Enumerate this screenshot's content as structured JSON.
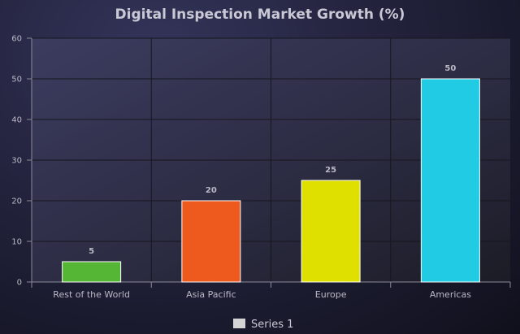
{
  "chart_data": {
    "type": "bar",
    "title": "Digital Inspection Market Growth (%)",
    "categories": [
      "Rest of the World",
      "Asia Pacific",
      "Europe",
      "Americas"
    ],
    "series": [
      {
        "name": "Series 1",
        "values": [
          5,
          20,
          25,
          50
        ],
        "colors": [
          "#55b535",
          "#ee5a1e",
          "#e0e000",
          "#22cbe4"
        ]
      }
    ],
    "ylim": [
      0,
      60
    ],
    "yticks": [
      0,
      10,
      20,
      30,
      40,
      50,
      60
    ],
    "grid": true,
    "legend": "bottom"
  },
  "legend_swatch_color": "#d4d4d4"
}
